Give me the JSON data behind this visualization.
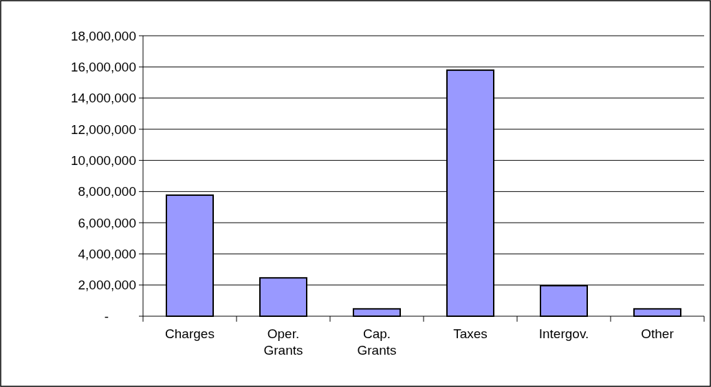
{
  "chart_data": {
    "type": "bar",
    "categories": [
      "Charges",
      "Oper.\nGrants",
      "Cap.\nGrants",
      "Taxes",
      "Intergov.",
      "Other"
    ],
    "values": [
      7770000,
      2460000,
      470000,
      15790000,
      1960000,
      470000
    ],
    "color": "#9999ff",
    "ylim": [
      0,
      18000000
    ],
    "yticks": [
      {
        "value": 0,
        "label": "-"
      },
      {
        "value": 2000000,
        "label": "2,000,000"
      },
      {
        "value": 4000000,
        "label": "4,000,000"
      },
      {
        "value": 6000000,
        "label": "6,000,000"
      },
      {
        "value": 8000000,
        "label": "8,000,000"
      },
      {
        "value": 10000000,
        "label": "10,000,000"
      },
      {
        "value": 12000000,
        "label": "12,000,000"
      },
      {
        "value": 14000000,
        "label": "14,000,000"
      },
      {
        "value": 16000000,
        "label": "16,000,000"
      },
      {
        "value": 18000000,
        "label": "18,000,000"
      }
    ],
    "grid": "y"
  }
}
